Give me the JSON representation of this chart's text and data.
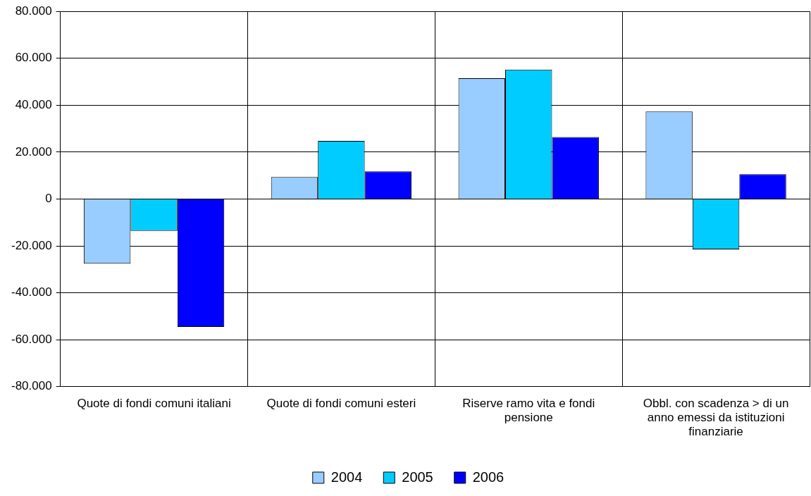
{
  "chart_data": {
    "type": "bar",
    "categories": [
      "Quote di fondi comuni italiani",
      "Quote di fondi comuni esteri",
      "Riserve ramo vita e fondi pensione",
      "Obbl. con scadenza > di un anno emessi da istituzioni finanziarie"
    ],
    "series": [
      {
        "name": "2004",
        "color": "#99ccff",
        "values": [
          -27600,
          9400,
          51500,
          37300
        ]
      },
      {
        "name": "2005",
        "color": "#00ccff",
        "values": [
          -13600,
          24800,
          55200,
          -21500
        ]
      },
      {
        "name": "2006",
        "color": "#0000ff",
        "values": [
          -54500,
          11800,
          26400,
          10600
        ]
      }
    ],
    "ylim": [
      -80000,
      80000
    ],
    "yticks": [
      {
        "value": -80000,
        "label": "-80.000"
      },
      {
        "value": -60000,
        "label": "-60.000"
      },
      {
        "value": -40000,
        "label": "-40.000"
      },
      {
        "value": -20000,
        "label": "-20.000"
      },
      {
        "value": 0,
        "label": "0"
      },
      {
        "value": 20000,
        "label": "20.000"
      },
      {
        "value": 40000,
        "label": "40.000"
      },
      {
        "value": 60000,
        "label": "60.000"
      },
      {
        "value": 80000,
        "label": "80.000"
      }
    ],
    "grid": true,
    "legend": "bottom"
  }
}
